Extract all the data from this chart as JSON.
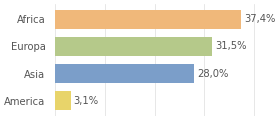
{
  "categories": [
    "America",
    "Asia",
    "Europa",
    "Africa"
  ],
  "values": [
    3.1,
    28.0,
    31.5,
    37.4
  ],
  "labels": [
    "3,1%",
    "28,0%",
    "31,5%",
    "37,4%"
  ],
  "bar_colors": [
    "#e8d46a",
    "#7b9ec9",
    "#b5c98a",
    "#f0b87a"
  ],
  "background_color": "#ffffff",
  "xlim": [
    0,
    44
  ],
  "label_fontsize": 7.2,
  "tick_fontsize": 7.2
}
